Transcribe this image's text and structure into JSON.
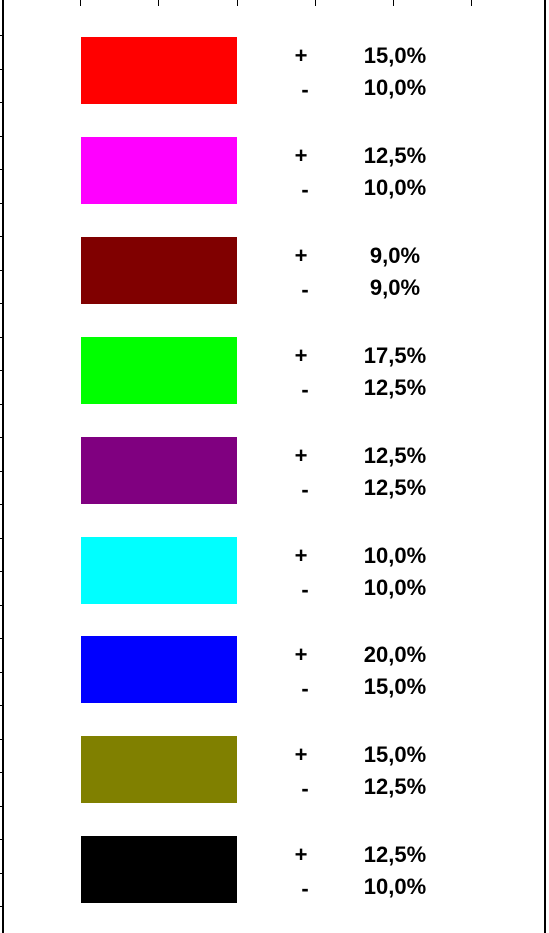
{
  "rows": [
    {
      "color": "#ff0000",
      "plus_sign": "+",
      "plus_value": "15,0%",
      "minus_sign": "-",
      "minus_value": "10,0%"
    },
    {
      "color": "#ff00ff",
      "plus_sign": "+",
      "plus_value": "12,5%",
      "minus_sign": "-",
      "minus_value": "10,0%"
    },
    {
      "color": "#800000",
      "plus_sign": "+",
      "plus_value": "9,0%",
      "minus_sign": "-",
      "minus_value": "9,0%"
    },
    {
      "color": "#00ff00",
      "plus_sign": "+",
      "plus_value": "17,5%",
      "minus_sign": "-",
      "minus_value": "12,5%"
    },
    {
      "color": "#800080",
      "plus_sign": "+",
      "plus_value": "12,5%",
      "minus_sign": "-",
      "minus_value": "12,5%"
    },
    {
      "color": "#00ffff",
      "plus_sign": "+",
      "plus_value": "10,0%",
      "minus_sign": "-",
      "minus_value": "10,0%"
    },
    {
      "color": "#0000ff",
      "plus_sign": "+",
      "plus_value": "20,0%",
      "minus_sign": "-",
      "minus_value": "15,0%"
    },
    {
      "color": "#808000",
      "plus_sign": "+",
      "plus_value": "15,0%",
      "minus_sign": "-",
      "minus_value": "12,5%"
    },
    {
      "color": "#000000",
      "plus_sign": "+",
      "plus_value": "12,5%",
      "minus_sign": "-",
      "minus_value": "10,0%"
    }
  ]
}
